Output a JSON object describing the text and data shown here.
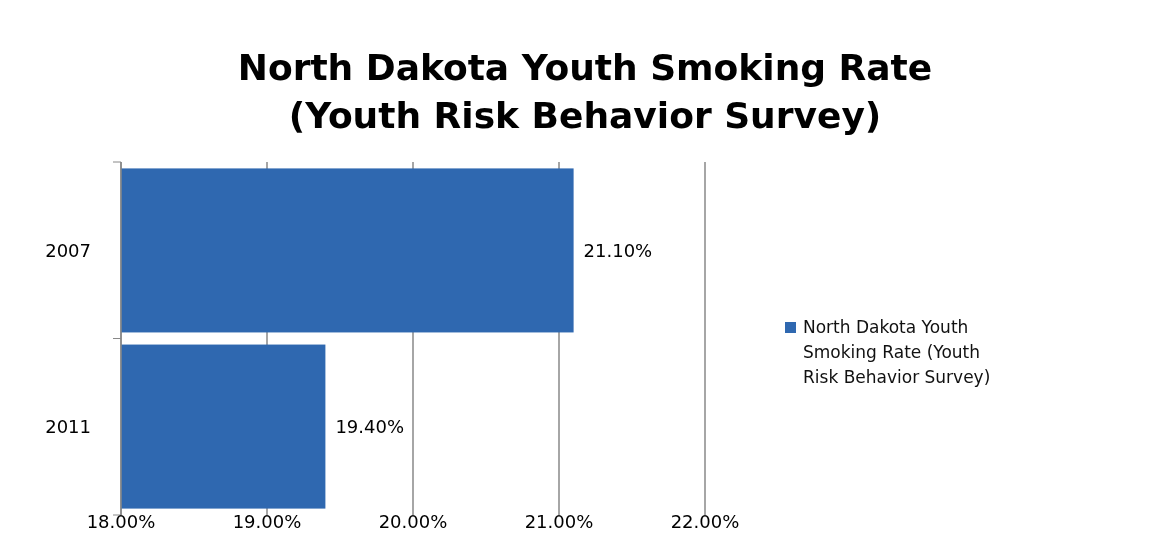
{
  "chart_data": {
    "type": "bar",
    "orientation": "horizontal",
    "title": "North Dakota Youth Smoking Rate\n(Youth Risk Behavior Survey)",
    "categories": [
      "2007",
      "2011"
    ],
    "series": [
      {
        "name": "North Dakota Youth Smoking Rate (Youth Risk Behavior Survey)",
        "color": "#2f68b0",
        "values": [
          21.1,
          19.4
        ],
        "value_labels": [
          "21.10%",
          "19.40%"
        ]
      }
    ],
    "xlim": [
      18,
      22
    ],
    "xticks": [
      {
        "value": 18,
        "label": "18.00%"
      },
      {
        "value": 19,
        "label": "19.00%"
      },
      {
        "value": 20,
        "label": "20.00%"
      },
      {
        "value": 21,
        "label": "21.00%"
      },
      {
        "value": 22,
        "label": "22.00%"
      }
    ],
    "grid": "x",
    "legend": "right"
  }
}
